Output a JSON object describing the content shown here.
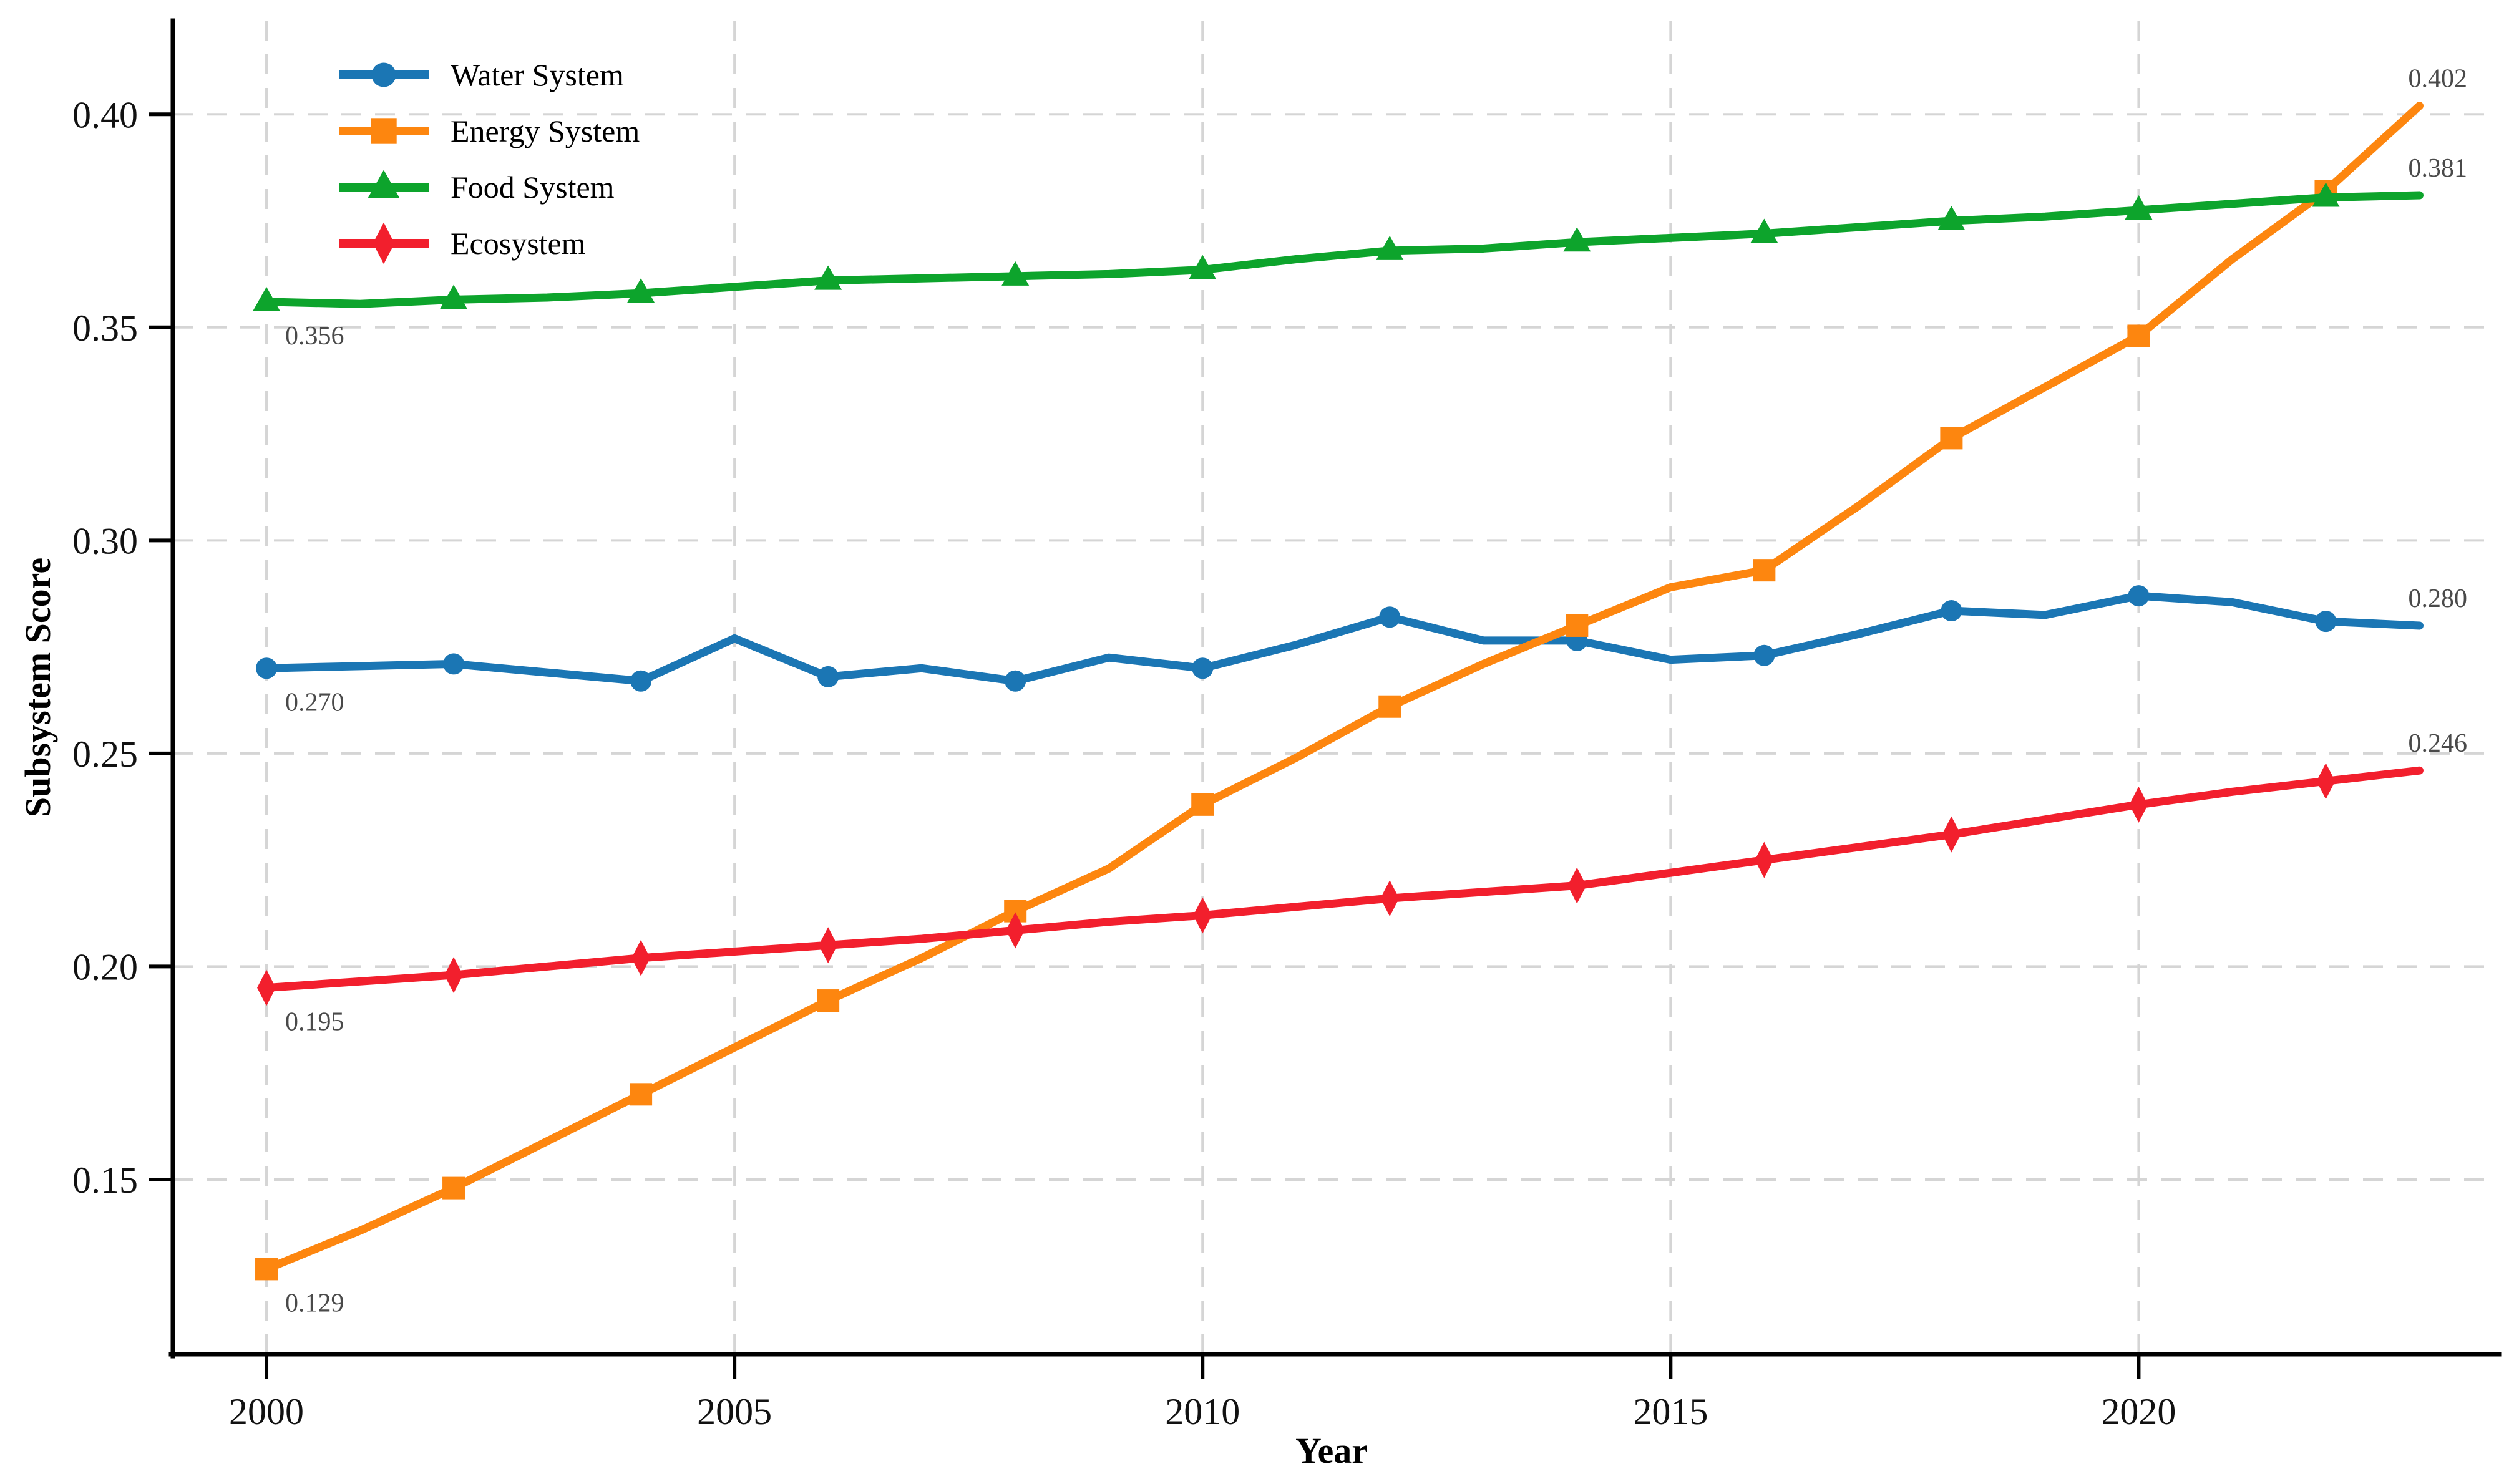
{
  "chart_data": {
    "type": "line",
    "title": "",
    "xlabel": "Year",
    "ylabel": "Subsystem Score",
    "x": [
      2000,
      2001,
      2002,
      2003,
      2004,
      2005,
      2006,
      2007,
      2008,
      2009,
      2010,
      2011,
      2012,
      2013,
      2014,
      2015,
      2016,
      2017,
      2018,
      2019,
      2020,
      2021,
      2022,
      2023
    ],
    "series": [
      {
        "name": "Water System",
        "color": "#1b76b4",
        "marker": "circle",
        "start_label": "0.270",
        "end_label": "0.280",
        "values": [
          0.27,
          0.2705,
          0.271,
          0.269,
          0.267,
          0.277,
          0.268,
          0.27,
          0.267,
          0.2725,
          0.27,
          0.2755,
          0.282,
          0.2765,
          0.2765,
          0.272,
          0.273,
          0.278,
          0.2835,
          0.2825,
          0.287,
          0.2855,
          0.281,
          0.28
        ]
      },
      {
        "name": "Energy System",
        "color": "#fd860f",
        "marker": "square",
        "start_label": "0.129",
        "end_label": "0.402",
        "values": [
          0.129,
          0.138,
          0.148,
          0.159,
          0.17,
          0.181,
          0.192,
          0.202,
          0.213,
          0.223,
          0.238,
          0.249,
          0.261,
          0.271,
          0.28,
          0.289,
          0.293,
          0.308,
          0.324,
          0.336,
          0.348,
          0.366,
          0.382,
          0.402
        ]
      },
      {
        "name": "Food System",
        "color": "#0da42c",
        "marker": "triangle",
        "start_label": "0.356",
        "end_label": "0.381",
        "values": [
          0.356,
          0.3555,
          0.3565,
          0.357,
          0.358,
          0.3595,
          0.361,
          0.3615,
          0.362,
          0.3625,
          0.3635,
          0.366,
          0.368,
          0.3685,
          0.37,
          0.371,
          0.372,
          0.3735,
          0.375,
          0.376,
          0.3775,
          0.379,
          0.3805,
          0.381
        ]
      },
      {
        "name": "Ecosystem",
        "color": "#f21f2d",
        "marker": "diamond",
        "start_label": "0.195",
        "end_label": "0.246",
        "values": [
          0.195,
          0.1965,
          0.198,
          0.2,
          0.202,
          0.2035,
          0.205,
          0.2065,
          0.2085,
          0.2105,
          0.212,
          0.214,
          0.216,
          0.2175,
          0.219,
          0.222,
          0.225,
          0.228,
          0.231,
          0.2345,
          0.238,
          0.241,
          0.2435,
          0.246
        ]
      }
    ],
    "xticks": [
      2000,
      2005,
      2010,
      2015,
      2020
    ],
    "yticks": [
      0.15,
      0.2,
      0.25,
      0.3,
      0.35,
      0.4
    ],
    "xlim": [
      1999.0,
      2023.75
    ],
    "ylim": [
      0.109,
      0.422
    ],
    "marker_every": 2,
    "grid": true,
    "grid_color": "#d5d5d5",
    "legend_position": "upper left",
    "annotation_color": "#4a4a4a",
    "axis_color": "#000000",
    "background_color": "#ffffff"
  }
}
